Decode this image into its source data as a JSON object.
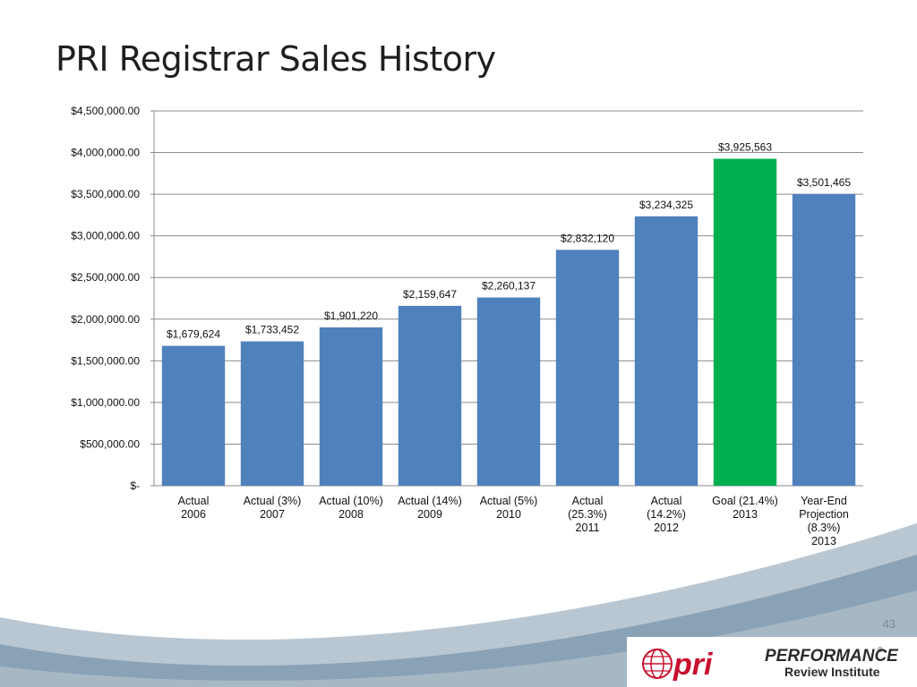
{
  "slide": {
    "title": "PRI Registrar Sales History",
    "page_number": "43"
  },
  "logo": {
    "mark": "pri",
    "line1": "PERFORMANCE",
    "registered": "®",
    "line2": "Review Institute"
  },
  "colors": {
    "bar": "#4f81bd",
    "highlight": "#00b050",
    "gridline": "#8c8c8c",
    "footer_wave": "#8aa2b5"
  },
  "chart_data": {
    "type": "bar",
    "title": "",
    "xlabel": "",
    "ylabel": "",
    "ylim": [
      0,
      4500000
    ],
    "y_ticks": [
      {
        "value": 0,
        "label": "$-"
      },
      {
        "value": 500000,
        "label": "$500,000.00"
      },
      {
        "value": 1000000,
        "label": "$1,000,000.00"
      },
      {
        "value": 1500000,
        "label": "$1,500,000.00"
      },
      {
        "value": 2000000,
        "label": "$2,000,000.00"
      },
      {
        "value": 2500000,
        "label": "$2,500,000.00"
      },
      {
        "value": 3000000,
        "label": "$3,000,000.00"
      },
      {
        "value": 3500000,
        "label": "$3,500,000.00"
      },
      {
        "value": 4000000,
        "label": "$4,000,000.00"
      },
      {
        "value": 4500000,
        "label": "$4,500,000.00"
      }
    ],
    "grid": true,
    "legend": "none",
    "categories": [
      [
        "Actual",
        "2006"
      ],
      [
        "Actual (3%)",
        "2007"
      ],
      [
        "Actual (10%)",
        "2008"
      ],
      [
        "Actual (14%)",
        "2009"
      ],
      [
        "Actual (5%)",
        "2010"
      ],
      [
        "Actual",
        "(25.3%)",
        "2011"
      ],
      [
        "Actual",
        "(14.2%)",
        "2012"
      ],
      [
        "Goal (21.4%)",
        "2013"
      ],
      [
        "Year-End",
        "Projection",
        "(8.3%)",
        "2013"
      ]
    ],
    "values": [
      1679624,
      1733452,
      1901220,
      2159647,
      2260137,
      2832120,
      3234325,
      3925563,
      3501465
    ],
    "data_labels": [
      "$1,679,624",
      "$1,733,452",
      "$1,901,220",
      "$2,159,647",
      "$2,260,137",
      "$2,832,120",
      "$3,234,325",
      "$3,925,563",
      "$3,501,465"
    ],
    "highlight_index": 7
  }
}
